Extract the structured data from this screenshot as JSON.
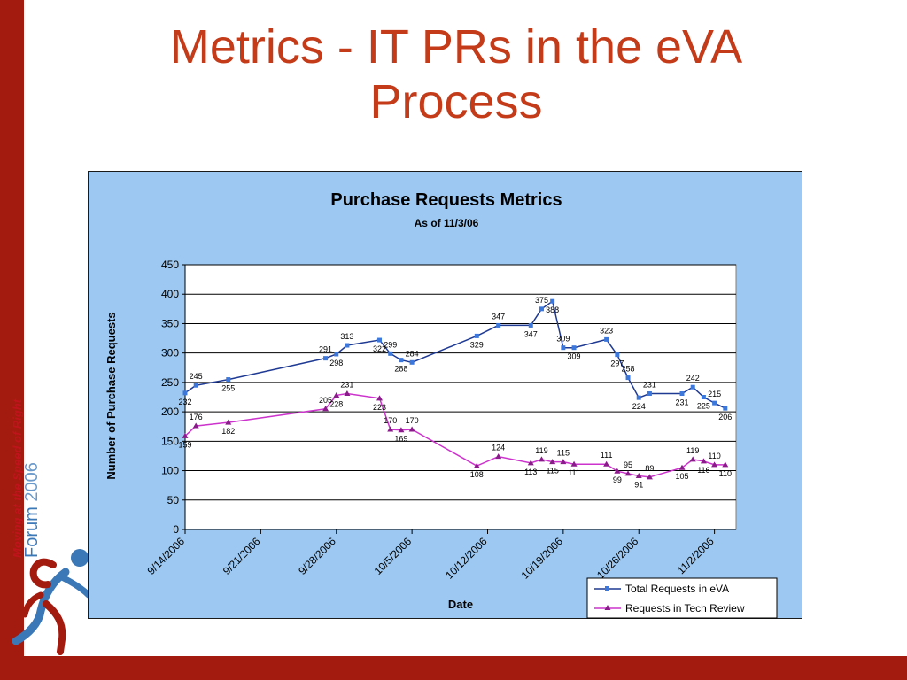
{
  "slide": {
    "title_line1": "Metrics - IT PRs in the eVA",
    "title_line2": "Process",
    "side_tagline": "Moving at the Speed of Right",
    "side_forum_word": "Forum",
    "side_forum_year": "2006"
  },
  "colors": {
    "accent_red": "#a31a0e",
    "title_red": "#c43b1a",
    "chart_background": "#9cc8f2",
    "series_total": "#1f3a93",
    "series_total_marker": "#3c78dc",
    "series_tech": "#cc33cc",
    "series_tech_marker": "#8b1a8b"
  },
  "chart_data": {
    "type": "line",
    "title": "Purchase Requests Metrics",
    "subtitle": "As of 11/3/06",
    "xlabel": "Date",
    "ylabel": "Number of Purchase Requests",
    "ylim": [
      0,
      450
    ],
    "yticks": [
      0,
      50,
      100,
      150,
      200,
      250,
      300,
      350,
      400,
      450
    ],
    "xlim": [
      "9/14/2006",
      "11/4/2006"
    ],
    "xticks": [
      "9/14/2006",
      "9/21/2006",
      "9/28/2006",
      "10/5/2006",
      "10/12/2006",
      "10/19/2006",
      "10/26/2006",
      "11/2/2006"
    ],
    "grid": "horizontal",
    "legend": "bottom-right",
    "series": [
      {
        "name": "Total Requests in eVA",
        "marker": "square",
        "x": [
          "9/14/2006",
          "9/15/2006",
          "9/18/2006",
          "9/27/2006",
          "9/28/2006",
          "9/29/2006",
          "10/2/2006",
          "10/3/2006",
          "10/4/2006",
          "10/5/2006",
          "10/11/2006",
          "10/13/2006",
          "10/16/2006",
          "10/17/2006",
          "10/18/2006",
          "10/19/2006",
          "10/20/2006",
          "10/23/2006",
          "10/24/2006",
          "10/25/2006",
          "10/26/2006",
          "10/27/2006",
          "10/30/2006",
          "10/31/2006",
          "11/1/2006",
          "11/2/2006",
          "11/3/2006"
        ],
        "values": [
          232,
          245,
          255,
          291,
          298,
          313,
          322,
          299,
          288,
          284,
          329,
          347,
          347,
          375,
          388,
          309,
          309,
          323,
          297,
          258,
          224,
          231,
          231,
          242,
          225,
          215,
          206
        ]
      },
      {
        "name": "Requests in Tech Review",
        "marker": "triangle",
        "x": [
          "9/14/2006",
          "9/15/2006",
          "9/18/2006",
          "9/27/2006",
          "9/28/2006",
          "9/29/2006",
          "10/2/2006",
          "10/3/2006",
          "10/4/2006",
          "10/5/2006",
          "10/11/2006",
          "10/13/2006",
          "10/16/2006",
          "10/17/2006",
          "10/18/2006",
          "10/19/2006",
          "10/20/2006",
          "10/23/2006",
          "10/24/2006",
          "10/25/2006",
          "10/26/2006",
          "10/27/2006",
          "10/30/2006",
          "10/31/2006",
          "11/1/2006",
          "11/2/2006",
          "11/3/2006"
        ],
        "values": [
          159,
          176,
          182,
          205,
          228,
          231,
          223,
          170,
          169,
          170,
          108,
          124,
          113,
          119,
          115,
          115,
          111,
          111,
          99,
          95,
          91,
          89,
          105,
          119,
          116,
          110,
          110
        ]
      }
    ]
  }
}
